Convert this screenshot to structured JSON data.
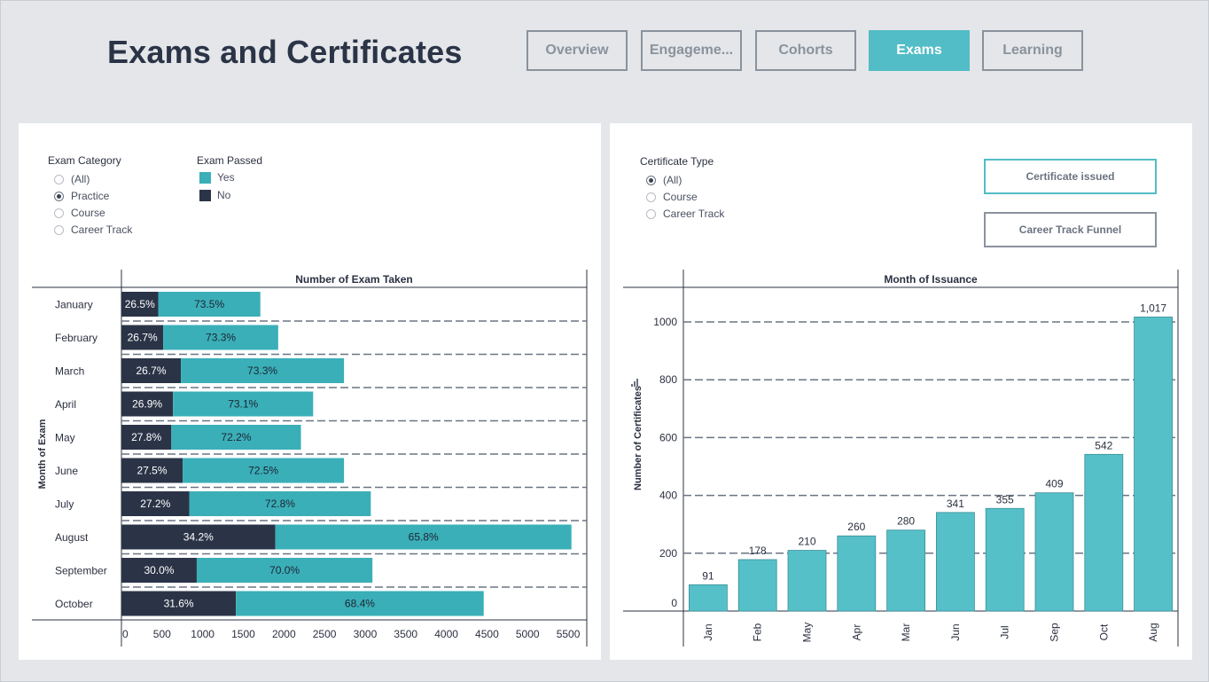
{
  "header": {
    "title": "Exams and Certificates",
    "tabs": [
      {
        "label": "Overview",
        "active": false
      },
      {
        "label": "Engageme...",
        "active": false
      },
      {
        "label": "Cohorts",
        "active": false
      },
      {
        "label": "Exams",
        "active": true
      },
      {
        "label": "Learning",
        "active": false
      }
    ]
  },
  "colors": {
    "accent": "#52bdc6",
    "yes": "#3aafb8",
    "no": "#2b3447",
    "bar": "#56c0c9"
  },
  "left_panel": {
    "exam_category": {
      "title": "Exam Category",
      "options": [
        "(All)",
        "Practice",
        "Course",
        "Career Track"
      ],
      "selected": "Practice"
    },
    "exam_passed": {
      "title": "Exam Passed",
      "items": [
        {
          "label": "Yes",
          "color": "#3aafb8"
        },
        {
          "label": "No",
          "color": "#2b3447"
        }
      ]
    }
  },
  "right_panel": {
    "certificate_type": {
      "title": "Certificate Type",
      "options": [
        "(All)",
        "Course",
        "Career Track"
      ],
      "selected": "(All)"
    },
    "buttons": {
      "certificate_issued": "Certificate issued",
      "career_track_funnel": "Career Track Funnel"
    }
  },
  "chart_data": [
    {
      "type": "bar",
      "orientation": "horizontal",
      "stacked": true,
      "title": "Number of Exam Taken",
      "ylabel": "Month of Exam",
      "categories": [
        "January",
        "February",
        "March",
        "April",
        "May",
        "June",
        "July",
        "August",
        "September",
        "October"
      ],
      "totals": [
        1710,
        1930,
        2740,
        2360,
        2210,
        2740,
        3070,
        5540,
        3090,
        4460
      ],
      "series": [
        {
          "name": "No",
          "percent_labels": [
            "26.5%",
            "26.7%",
            "26.7%",
            "26.9%",
            "27.8%",
            "27.5%",
            "27.2%",
            "34.2%",
            "30.0%",
            "31.6%"
          ]
        },
        {
          "name": "Yes",
          "percent_labels": [
            "73.5%",
            "73.3%",
            "73.3%",
            "73.1%",
            "72.2%",
            "72.5%",
            "72.8%",
            "65.8%",
            "70.0%",
            "68.4%"
          ]
        }
      ],
      "xticks": [
        "0",
        "500",
        "1000",
        "1500",
        "2000",
        "2500",
        "3000",
        "3500",
        "4000",
        "4500",
        "5000",
        "5500"
      ],
      "xlim": [
        0,
        5700
      ],
      "grid": "horizontal dashed"
    },
    {
      "type": "bar",
      "title": "Month of Issuance",
      "ylabel": "Number of Certificates",
      "categories": [
        "Jan",
        "Feb",
        "May",
        "Apr",
        "Mar",
        "Jun",
        "Jul",
        "Sep",
        "Oct",
        "Aug"
      ],
      "values": [
        91,
        178,
        210,
        260,
        280,
        341,
        355,
        409,
        542,
        1017
      ],
      "data_labels": [
        "91",
        "178",
        "210",
        "260",
        "280",
        "341",
        "355",
        "409",
        "542",
        "1,017"
      ],
      "yticks": [
        "0",
        "200",
        "400",
        "600",
        "800",
        "1000"
      ],
      "ylim": [
        0,
        1090
      ],
      "grid": "horizontal dashed"
    }
  ]
}
